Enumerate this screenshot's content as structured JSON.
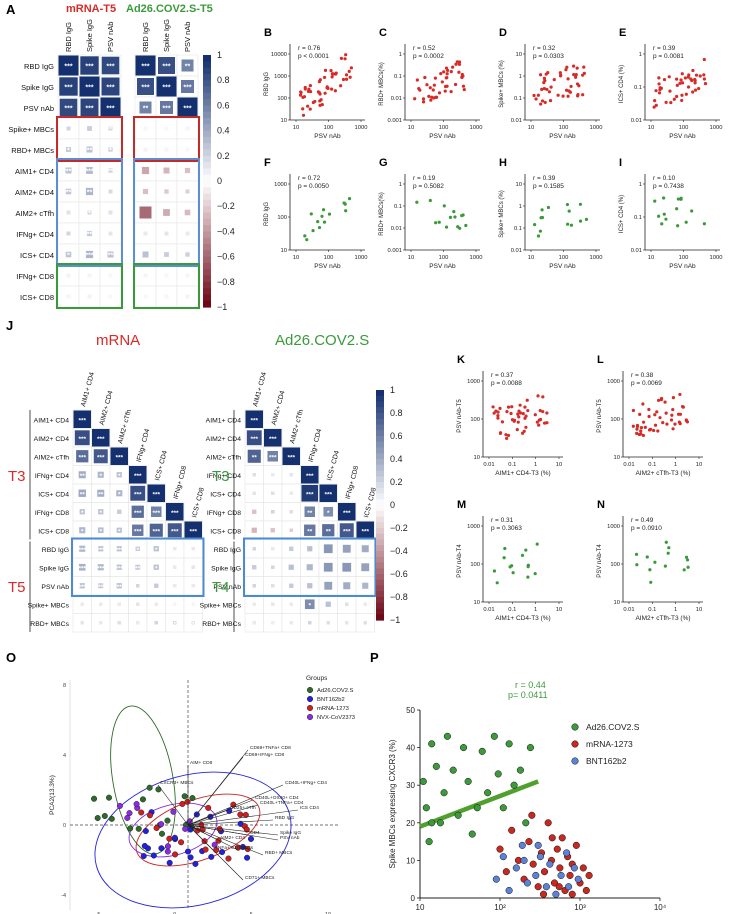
{
  "panel_letters": [
    "A",
    "B",
    "C",
    "D",
    "E",
    "F",
    "G",
    "H",
    "I",
    "J",
    "K",
    "L",
    "M",
    "N",
    "O",
    "P"
  ],
  "A": {
    "title_left": "mRNA-T5",
    "title_right": "Ad26.COV2.S-T5",
    "col_labels": [
      "RBD IgG",
      "Spike IgG",
      "PSV nAb"
    ],
    "row_labels": [
      "RBD IgG",
      "Spike IgG",
      "PSV nAb",
      "Spike+ MBCs",
      "RBD+ MBCs",
      "AIM1+ CD4",
      "AIM2+ CD4",
      "AIM2+ cTfh",
      "IFNg+ CD4",
      "ICS+ CD4",
      "IFNg+ CD8",
      "ICS+ CD8"
    ],
    "left_values": [
      [
        1,
        0.92,
        0.88
      ],
      [
        0.92,
        1,
        0.9
      ],
      [
        0.88,
        0.9,
        1
      ],
      [
        0.2,
        0.24,
        0.2
      ],
      [
        0.25,
        0.3,
        0.22
      ],
      [
        0.3,
        0.34,
        0.22
      ],
      [
        0.28,
        0.36,
        0.18
      ],
      [
        0.14,
        0.2,
        0.14
      ],
      [
        0.2,
        0.26,
        0.12
      ],
      [
        0.28,
        0.36,
        0.3
      ],
      [
        0.06,
        0.05,
        0.04
      ],
      [
        0.05,
        0.06,
        0.04
      ]
    ],
    "right_values": [
      [
        1,
        0.85,
        0.6
      ],
      [
        0.85,
        1,
        0.65
      ],
      [
        0.6,
        0.65,
        1
      ],
      [
        0.05,
        0.04,
        0.05
      ],
      [
        0.06,
        0.05,
        0.04
      ],
      [
        -0.36,
        -0.3,
        -0.26
      ],
      [
        -0.26,
        -0.22,
        -0.2
      ],
      [
        -0.6,
        -0.34,
        -0.28
      ],
      [
        0.1,
        0.12,
        0.1
      ],
      [
        0.3,
        0.24,
        0.22
      ],
      [
        0.05,
        0.04,
        0.05
      ],
      [
        0.04,
        0.05,
        0.06
      ]
    ],
    "left_stars": [
      [
        "***",
        "***",
        "***"
      ],
      [
        "***",
        "***",
        "***"
      ],
      [
        "***",
        "***",
        "***"
      ],
      [
        "",
        "",
        "*"
      ],
      [
        "*",
        "**",
        "*"
      ],
      [
        "**",
        "***",
        "**"
      ],
      [
        "**",
        "**",
        ""
      ],
      [
        "",
        "*",
        ""
      ],
      [
        "",
        "**",
        ""
      ],
      [
        "*",
        "***",
        "**"
      ],
      [
        "",
        "",
        " "
      ],
      [
        "",
        "",
        ""
      ]
    ],
    "right_stars": [
      [
        "***",
        "***",
        "**"
      ],
      [
        "***",
        "***",
        "***"
      ],
      [
        "**",
        "***",
        "***"
      ],
      [
        "",
        "",
        ""
      ],
      [
        "",
        "",
        ""
      ],
      [
        "",
        "",
        ""
      ],
      [
        "",
        "",
        ""
      ],
      [
        "",
        "",
        ""
      ],
      [
        "",
        "",
        ""
      ],
      [
        "",
        "",
        ""
      ],
      [
        "",
        "",
        ""
      ],
      [
        "",
        "",
        ""
      ]
    ],
    "scale_ticks": [
      "1",
      "0.8",
      "0.6",
      "0.4",
      "0.2",
      "0",
      "−0.2",
      "−0.4",
      "−0.6",
      "−0.8",
      "−1"
    ]
  },
  "scatters_top": [
    {
      "letter": "B",
      "r": "r = 0.76",
      "p": "p < 0.0001",
      "ylabel": "RBD IgG",
      "xlabel": "PSV nAb",
      "yticks": [
        "10000",
        "1000",
        "100",
        "10"
      ],
      "xticks": [
        "10",
        "100",
        "1000"
      ],
      "color": "#d62b27"
    },
    {
      "letter": "C",
      "r": "r = 0.52",
      "p": "p = 0.0002",
      "ylabel": "RBD+ MBCs(%)",
      "xlabel": "PSV nAb",
      "yticks": [
        "1",
        "0.1",
        "0.01",
        "0.001"
      ],
      "xticks": [
        "10",
        "100",
        "1000"
      ],
      "color": "#d62b27"
    },
    {
      "letter": "D",
      "r": "r = 0.32",
      "p": "p = 0.0303",
      "ylabel": "Spike+ MBCs (%)",
      "xlabel": "PSV nAb",
      "yticks": [
        "10",
        "1",
        "0.1",
        "0.01"
      ],
      "xticks": [
        "10",
        "100",
        "1000"
      ],
      "color": "#d62b27"
    },
    {
      "letter": "E",
      "r": "r = 0.39",
      "p": "p = 0.0081",
      "ylabel": "ICS+ CD4 (%)",
      "xlabel": "PSV nAb",
      "yticks": [
        "1",
        "0.1",
        "0.01"
      ],
      "xticks": [
        "10",
        "100",
        "1000"
      ],
      "color": "#d62b27"
    },
    {
      "letter": "F",
      "r": "r = 0.72",
      "p": "p = 0.0050",
      "ylabel": "RBD IgG",
      "xlabel": "PSV nAb",
      "yticks": [
        "1000",
        "100",
        "10"
      ],
      "xticks": [
        "10",
        "100",
        "1000"
      ],
      "color": "#3a9a3a"
    },
    {
      "letter": "G",
      "r": "r = 0.19",
      "p": "p = 0.5082",
      "ylabel": "RBD+ MBCs(%)",
      "xlabel": "PSV nAb",
      "yticks": [
        "1",
        "0.1",
        "0.01",
        "0.001"
      ],
      "xticks": [
        "10",
        "100",
        "1000"
      ],
      "color": "#3a9a3a"
    },
    {
      "letter": "H",
      "r": "r = 0.39",
      "p": "p = 0.1585",
      "ylabel": "Spike+ MBCs (%)",
      "xlabel": "PSV nAb",
      "yticks": [
        "10",
        "1",
        "0.1",
        "0.01"
      ],
      "xticks": [
        "10",
        "100",
        "1000"
      ],
      "color": "#3a9a3a"
    },
    {
      "letter": "I",
      "r": "r = 0.10",
      "p": "p = 0.7438",
      "ylabel": "ICS+ CD4 (%)",
      "xlabel": "PSV nAb",
      "yticks": [
        "1",
        "0.1",
        "0.01"
      ],
      "xticks": [
        "10",
        "100",
        "1000"
      ],
      "color": "#3a9a3a"
    }
  ],
  "J": {
    "title_left": "mRNA",
    "title_right": "Ad26.COV2.S",
    "col_labels": [
      "AIM1+ CD4",
      "AIM2+ CD4",
      "AIM2+ cTfh",
      "IFNg+ CD4",
      "ICS+ CD4",
      "IFNg+ CD8",
      "ICS+ CD8"
    ],
    "row_labels": [
      "AIM1+ CD4",
      "AIM2+ CD4",
      "AIM2+ cTfh",
      "IFNg+ CD4",
      "ICS+ CD4",
      "IFNg+ CD8",
      "ICS+ CD8",
      "RBD IgG",
      "Spike IgG",
      "PSV nAb",
      "Spike+ MBCs",
      "RBD+ MBCs"
    ],
    "left_time_labels": [
      "T3",
      "T5"
    ],
    "right_time_labels": [
      "T3",
      "T4"
    ],
    "left_values": [
      [
        1
      ],
      [
        0.85,
        1
      ],
      [
        0.7,
        0.8,
        1
      ],
      [
        0.4,
        0.35,
        0.3,
        1
      ],
      [
        0.42,
        0.4,
        0.35,
        0.85,
        1
      ],
      [
        0.3,
        0.3,
        0.25,
        0.7,
        0.6,
        1
      ],
      [
        0.35,
        0.32,
        0.3,
        0.65,
        0.75,
        0.8,
        1
      ],
      [
        0.35,
        0.3,
        0.3,
        0.25,
        0.3,
        0.1,
        0.1
      ],
      [
        0.38,
        0.35,
        0.3,
        0.28,
        0.3,
        0.1,
        0.12
      ],
      [
        0.3,
        0.28,
        0.3,
        0.2,
        0.25,
        0.1,
        0.1
      ],
      [
        0.1,
        0.1,
        0.1,
        0.12,
        0.1,
        0.05,
        0.05
      ],
      [
        0.12,
        0.1,
        0.15,
        0.1,
        0.2,
        0.2,
        0.15
      ]
    ],
    "right_values": [
      [
        1
      ],
      [
        0.85,
        1
      ],
      [
        0.75,
        0.6,
        1
      ],
      [
        0.15,
        0.1,
        0.12,
        1
      ],
      [
        0.12,
        0.15,
        0.1,
        0.95,
        1
      ],
      [
        -0.25,
        -0.2,
        -0.15,
        0.6,
        0.55,
        1
      ],
      [
        -0.3,
        -0.25,
        -0.2,
        0.65,
        0.7,
        0.8,
        1
      ],
      [
        0.2,
        0.1,
        0.25,
        0.3,
        0.5,
        0.45,
        0.4
      ],
      [
        0.25,
        0.2,
        0.3,
        0.35,
        0.5,
        0.5,
        0.45
      ],
      [
        0.2,
        0.15,
        0.25,
        0.3,
        0.45,
        0.4,
        0.35
      ],
      [
        0.1,
        0.12,
        0.1,
        0.55,
        0.3,
        0.15,
        0.1
      ],
      [
        0.1,
        0.08,
        0.1,
        0.2,
        0.15,
        0.12,
        0.15
      ]
    ],
    "left_stars": [
      [
        "***"
      ],
      [
        "***",
        "***"
      ],
      [
        "***",
        "***",
        "***"
      ],
      [
        "**",
        "*",
        "*",
        "***"
      ],
      [
        "**",
        "**",
        "*",
        "***",
        "***"
      ],
      [
        "*",
        "*",
        "",
        "***",
        "***",
        "***"
      ],
      [
        "*",
        "*",
        "*",
        "***",
        "***",
        "***",
        "***"
      ],
      [
        "***",
        "***",
        "***",
        "*",
        "*",
        "",
        ""
      ],
      [
        "***",
        "***",
        "***",
        "**",
        "*",
        "",
        ""
      ],
      [
        "***",
        "**",
        "**",
        "",
        "",
        "",
        ""
      ],
      [
        "",
        "",
        "",
        "",
        "",
        "",
        ""
      ],
      [
        "",
        "",
        "",
        "",
        "",
        "*",
        "*"
      ]
    ],
    "right_stars": [
      [
        "***"
      ],
      [
        "***",
        "***"
      ],
      [
        "**",
        "***",
        "***"
      ],
      [
        "",
        "",
        "",
        "***"
      ],
      [
        "",
        "",
        "",
        "***",
        "***"
      ],
      [
        "",
        "",
        "",
        "**",
        "*",
        "***"
      ],
      [
        "",
        "",
        "",
        "**",
        "**",
        "***",
        "***"
      ],
      [
        "",
        "",
        "",
        "",
        "",
        "",
        ""
      ],
      [
        "",
        "",
        "",
        "",
        "",
        "",
        ""
      ],
      [
        "",
        "",
        "",
        "",
        "",
        "",
        ""
      ],
      [
        "",
        "",
        "",
        "*",
        "",
        "",
        ""
      ],
      [
        "",
        "",
        "",
        "",
        "",
        "",
        ""
      ]
    ],
    "scale_ticks": [
      "1",
      "0.8",
      "0.6",
      "0.4",
      "0.2",
      "0",
      "−0.2",
      "−0.4",
      "−0.6",
      "−0.8",
      "−1"
    ]
  },
  "scatters_mid": [
    {
      "letter": "K",
      "r": "r = 0.37",
      "p": "p = 0.0088",
      "ylabel": "PSV nAb-T5",
      "xlabel": "AIM1+ CD4-T3 (%)",
      "yticks": [
        "1000",
        "100",
        "10"
      ],
      "xticks": [
        "0.01",
        "0.1",
        "1",
        "10"
      ],
      "color": "#d62b27"
    },
    {
      "letter": "L",
      "r": "r = 0.38",
      "p": "p = 0.0069",
      "ylabel": "PSV nAb-T5",
      "xlabel": "AIM2+ cTfh-T3 (%)",
      "yticks": [
        "1000",
        "100",
        "10"
      ],
      "xticks": [
        "0.01",
        "0.1",
        "1",
        "10"
      ],
      "color": "#d62b27"
    },
    {
      "letter": "M",
      "r": "r = 0.31",
      "p": "p = 0.3063",
      "ylabel": "PSV nAb-T4",
      "xlabel": "AIM1+ CD4-T3 (%)",
      "yticks": [
        "1000",
        "100",
        "10"
      ],
      "xticks": [
        "0.01",
        "0.1",
        "1",
        "10"
      ],
      "color": "#3a9a3a"
    },
    {
      "letter": "N",
      "r": "r = 0.49",
      "p": "p = 0.0910",
      "ylabel": "PSV nAb-T4",
      "xlabel": "AIM2+ cTfh-T3 (%)",
      "yticks": [
        "1000",
        "100",
        "10"
      ],
      "xticks": [
        "0.01",
        "0.1",
        "1",
        "10"
      ],
      "color": "#3a9a3a"
    }
  ],
  "O": {
    "legend_title": "Groups",
    "groups": [
      {
        "name": "Ad26.COV2.S",
        "color": "#2e6b2a"
      },
      {
        "name": "BNT162b2",
        "color": "#2222dd"
      },
      {
        "name": "mRNA-1273",
        "color": "#cc1f1f"
      },
      {
        "name": "NVX-CoV2373",
        "color": "#8a2be2"
      }
    ],
    "xlabel": "PCA1(28.2%)",
    "ylabel": "PCA2(13.3%)",
    "xticks": [
      "-5",
      "0",
      "5",
      "10"
    ],
    "yticks": [
      "8",
      "4",
      "0",
      "-4"
    ],
    "vector_labels": [
      "CD69+TNFa+ CD8",
      "CD69+IFNg+ CD8",
      "AIM+ CD8",
      "CXCR3+ MBCs",
      "CD40L+IFNg+ CD4",
      "CD40L+OX40+ CD4",
      "CD40L+TNFa+ CD4",
      "ICS CD4",
      "RBD IgG",
      "Spike IgG",
      "CD4",
      "PSV nAb",
      "CD25+ cTfh",
      "MBCs",
      "RBD+ MBCs",
      "CD71+ MBCs",
      "TNFa+ CD4",
      "AIM2+ CD4"
    ]
  },
  "chart_data": {
    "type": "scatter",
    "title": "",
    "r_text": "r = 0.44",
    "p_text": "p= 0.0411",
    "xlabel": "Neutralization Titer (PSV, IU/mL)",
    "ylabel": "Spike MBCs expressing CXCR3 (%)",
    "xscale": "log",
    "xlim": [
      10,
      10000
    ],
    "ylim": [
      0,
      50
    ],
    "xticks": [
      "10",
      "10²",
      "10³",
      "10⁴"
    ],
    "yticks": [
      "0",
      "10",
      "20",
      "30",
      "40",
      "50"
    ],
    "legend": "top-right",
    "series": [
      {
        "name": "Ad26.COV2.S",
        "color": "#3d9a3a",
        "points": [
          [
            11,
            31
          ],
          [
            12,
            24
          ],
          [
            13,
            15
          ],
          [
            14,
            41
          ],
          [
            16,
            35
          ],
          [
            18,
            20
          ],
          [
            22,
            43
          ],
          [
            26,
            34
          ],
          [
            30,
            22
          ],
          [
            35,
            40
          ],
          [
            40,
            31
          ],
          [
            45,
            17
          ],
          [
            52,
            24
          ],
          [
            60,
            39
          ],
          [
            70,
            28
          ],
          [
            85,
            43
          ],
          [
            95,
            33
          ],
          [
            110,
            24
          ],
          [
            130,
            41
          ],
          [
            150,
            30
          ],
          [
            180,
            34
          ],
          [
            210,
            20
          ],
          [
            240,
            40
          ],
          [
            14,
            20
          ],
          [
            20,
            28
          ]
        ]
      },
      {
        "name": "mRNA-1273",
        "color": "#c8281f",
        "points": [
          [
            100,
            13
          ],
          [
            120,
            7
          ],
          [
            140,
            18
          ],
          [
            170,
            10
          ],
          [
            200,
            5
          ],
          [
            230,
            15
          ],
          [
            260,
            9
          ],
          [
            300,
            3
          ],
          [
            330,
            12
          ],
          [
            360,
            7
          ],
          [
            400,
            20
          ],
          [
            440,
            10
          ],
          [
            480,
            4
          ],
          [
            520,
            13
          ],
          [
            560,
            8
          ],
          [
            600,
            16
          ],
          [
            650,
            2
          ],
          [
            700,
            11
          ],
          [
            750,
            6
          ],
          [
            800,
            9
          ],
          [
            900,
            14
          ],
          [
            1000,
            4
          ],
          [
            1100,
            8
          ],
          [
            1200,
            2
          ],
          [
            1300,
            6
          ],
          [
            250,
            22
          ],
          [
            350,
            1
          ],
          [
            450,
            16
          ],
          [
            550,
            3
          ],
          [
            800,
            1
          ]
        ]
      },
      {
        "name": "BNT162b2",
        "color": "#5b82d6",
        "points": [
          [
            90,
            5
          ],
          [
            110,
            11
          ],
          [
            130,
            2
          ],
          [
            160,
            8
          ],
          [
            190,
            14
          ],
          [
            220,
            4
          ],
          [
            280,
            6
          ],
          [
            320,
            11
          ],
          [
            380,
            3
          ],
          [
            420,
            9
          ],
          [
            500,
            1
          ],
          [
            580,
            6
          ],
          [
            680,
            12
          ],
          [
            720,
            3
          ],
          [
            850,
            8
          ],
          [
            950,
            5
          ],
          [
            300,
            14
          ],
          [
            200,
            10
          ]
        ]
      }
    ],
    "trend_line": {
      "series": "Ad26.COV2.S",
      "from": [
        10,
        19
      ],
      "to": [
        300,
        31
      ]
    }
  }
}
